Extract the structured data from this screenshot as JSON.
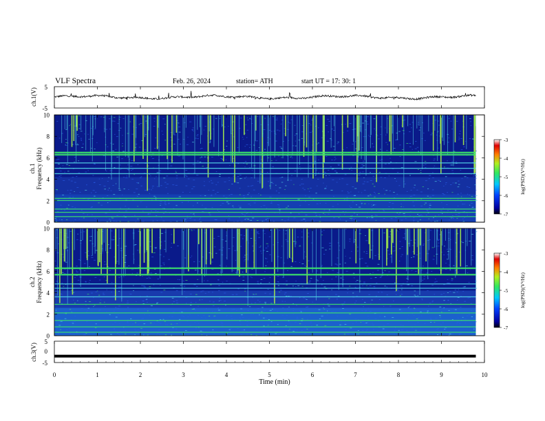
{
  "header": {
    "title": "VLF Spectra",
    "date": "Feb. 26, 2024",
    "station": "station= ATH",
    "start_ut": "start UT =   17: 30: 1"
  },
  "colors": {
    "spec_background": "#0a1a8a",
    "band_green": "#3ce36a",
    "burst_green": "#a6f04a",
    "line_cyan": "#52d6e8",
    "waveform": "#000000"
  },
  "chart_data": [
    {
      "id": "ch1_waveform",
      "type": "line",
      "ylabel": "ch.1(V)",
      "ylim": [
        -5,
        5
      ],
      "y_ticks": [
        "5",
        "-5"
      ],
      "xlim": [
        0,
        10
      ],
      "note_baseline_value": 0.1
    },
    {
      "id": "ch1_spectrogram",
      "type": "heatmap",
      "ylabel_line1": "ch.1",
      "ylabel_line2": "Frequency (kHz)",
      "ylim": [
        0,
        10
      ],
      "y_ticks": [
        "0",
        "2",
        "4",
        "6",
        "8",
        "10"
      ],
      "xlim": [
        0,
        10
      ],
      "persistent_lines_khz": [
        6.5,
        6.3,
        5.5,
        5.0,
        4.5,
        2.2,
        2.0,
        1.2,
        0.9,
        0.5
      ],
      "colorbar": {
        "label": "log(PSD)(V²/Hz)",
        "ticks": [
          "-3",
          "-4",
          "-5",
          "-6",
          "-7"
        ],
        "range": [
          -7,
          -3
        ]
      }
    },
    {
      "id": "ch2_spectrogram",
      "type": "heatmap",
      "ylabel_line1": "ch.2",
      "ylabel_line2": "Frequency (kHz)",
      "ylim": [
        0,
        10
      ],
      "y_ticks": [
        "0",
        "2",
        "4",
        "6",
        "8",
        "10"
      ],
      "xlim": [
        0,
        10
      ],
      "persistent_lines_khz": [
        6.3,
        5.7,
        4.8,
        4.4,
        3.6,
        2.9,
        2.1,
        1.4,
        0.8,
        0.3
      ],
      "colorbar": {
        "label": "log(PSD)(V²/Hz)",
        "ticks": [
          "-3",
          "-4",
          "-5",
          "-6",
          "-7"
        ],
        "range": [
          -7,
          -3
        ]
      }
    },
    {
      "id": "ch3_waveform",
      "type": "line",
      "ylabel": "ch.3(V)",
      "ylim": [
        -5,
        5
      ],
      "y_ticks": [
        "5",
        "0",
        "-5"
      ],
      "xlim": [
        0,
        10
      ],
      "constant_value": -2.0
    }
  ],
  "x_axis": {
    "label": "Time (min)",
    "ticks": [
      "0",
      "1",
      "2",
      "3",
      "4",
      "5",
      "6",
      "7",
      "8",
      "9",
      "10"
    ],
    "data_end_min": 9.8
  }
}
